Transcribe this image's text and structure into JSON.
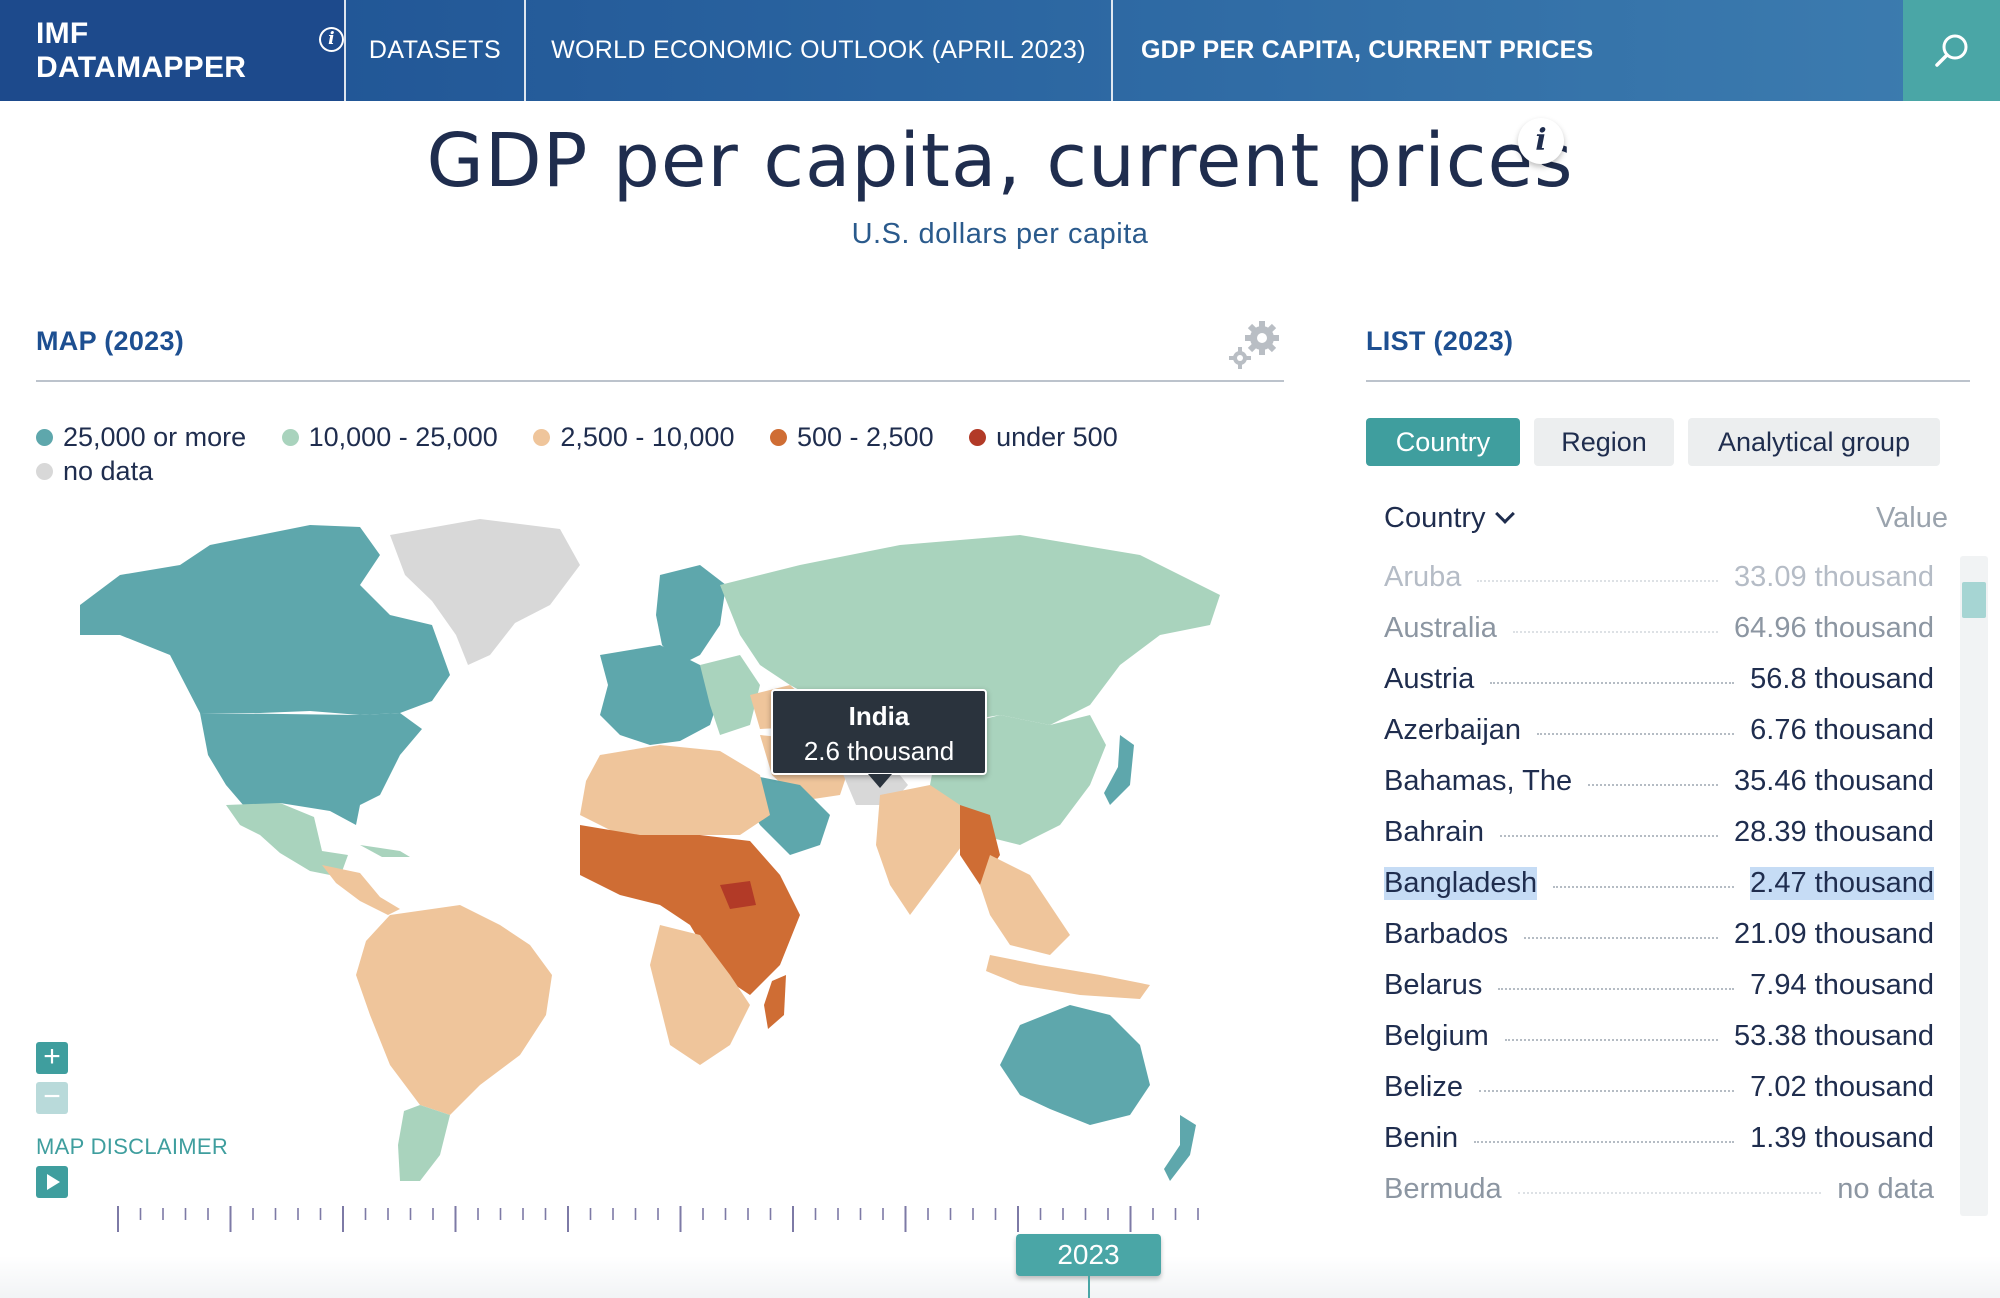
{
  "nav": {
    "brand": "IMF DATAMAPPER",
    "datasets": "DATASETS",
    "dataset_name": "WORLD ECONOMIC OUTLOOK (APRIL 2023)",
    "indicator": "GDP PER CAPITA, CURRENT PRICES",
    "search_icon": "search-icon",
    "brand_info_icon": "info-icon"
  },
  "title": "GDP per capita, current prices",
  "subtitle": "U.S. dollars per capita",
  "map": {
    "heading": "MAP (2023)",
    "legend": [
      {
        "label": "25,000 or more",
        "color": "#5ea7ac"
      },
      {
        "label": "10,000 - 25,000",
        "color": "#a9d3bd"
      },
      {
        "label": "2,500 - 10,000",
        "color": "#efc59b"
      },
      {
        "label": "500 - 2,500",
        "color": "#cf6d34"
      },
      {
        "label": "under 500",
        "color": "#b23a27"
      },
      {
        "label": "no data",
        "color": "#d8d8d8"
      }
    ],
    "tooltip": {
      "country": "India",
      "value": "2.6 thousand"
    },
    "zoom_in": "+",
    "zoom_out": "−",
    "disclaimer": "MAP DISCLAIMER",
    "year": "2023",
    "colors": {
      "no_data": "#d8d8d8",
      "ocean": "#ffffff"
    }
  },
  "list": {
    "heading": "LIST (2023)",
    "tabs": [
      {
        "label": "Country",
        "active": true
      },
      {
        "label": "Region",
        "active": false
      },
      {
        "label": "Analytical group",
        "active": false
      }
    ],
    "header_country": "Country",
    "header_value": "Value",
    "rows": [
      {
        "name": "Aruba",
        "value": "33.09 thousand",
        "state": "faded"
      },
      {
        "name": "Australia",
        "value": "64.96 thousand",
        "state": ""
      },
      {
        "name": "Austria",
        "value": "56.8 thousand",
        "state": ""
      },
      {
        "name": "Azerbaijan",
        "value": "6.76 thousand",
        "state": ""
      },
      {
        "name": "Bahamas, The",
        "value": "35.46 thousand",
        "state": ""
      },
      {
        "name": "Bahrain",
        "value": "28.39 thousand",
        "state": ""
      },
      {
        "name": "Bangladesh",
        "value": "2.47 thousand",
        "state": "sel"
      },
      {
        "name": "Barbados",
        "value": "21.09 thousand",
        "state": ""
      },
      {
        "name": "Belarus",
        "value": "7.94 thousand",
        "state": ""
      },
      {
        "name": "Belgium",
        "value": "53.38 thousand",
        "state": ""
      },
      {
        "name": "Belize",
        "value": "7.02 thousand",
        "state": ""
      },
      {
        "name": "Benin",
        "value": "1.39 thousand",
        "state": ""
      },
      {
        "name": "Bermuda",
        "value": "no data",
        "state": "faded"
      }
    ]
  }
}
